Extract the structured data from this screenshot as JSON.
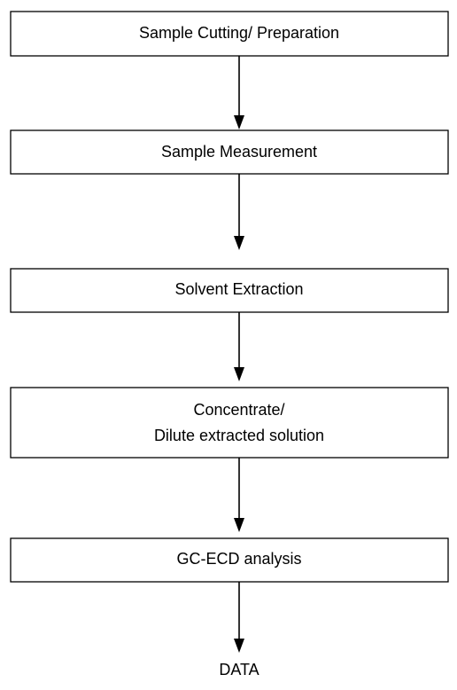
{
  "nodes": [
    {
      "lines": [
        "Sample Cutting/ Preparation"
      ]
    },
    {
      "lines": [
        "Sample Measurement"
      ]
    },
    {
      "lines": [
        "Solvent Extraction"
      ]
    },
    {
      "lines": [
        "Concentrate/",
        "Dilute extracted solution"
      ]
    },
    {
      "lines": [
        "GC-ECD analysis"
      ]
    }
  ],
  "output": "DATA"
}
